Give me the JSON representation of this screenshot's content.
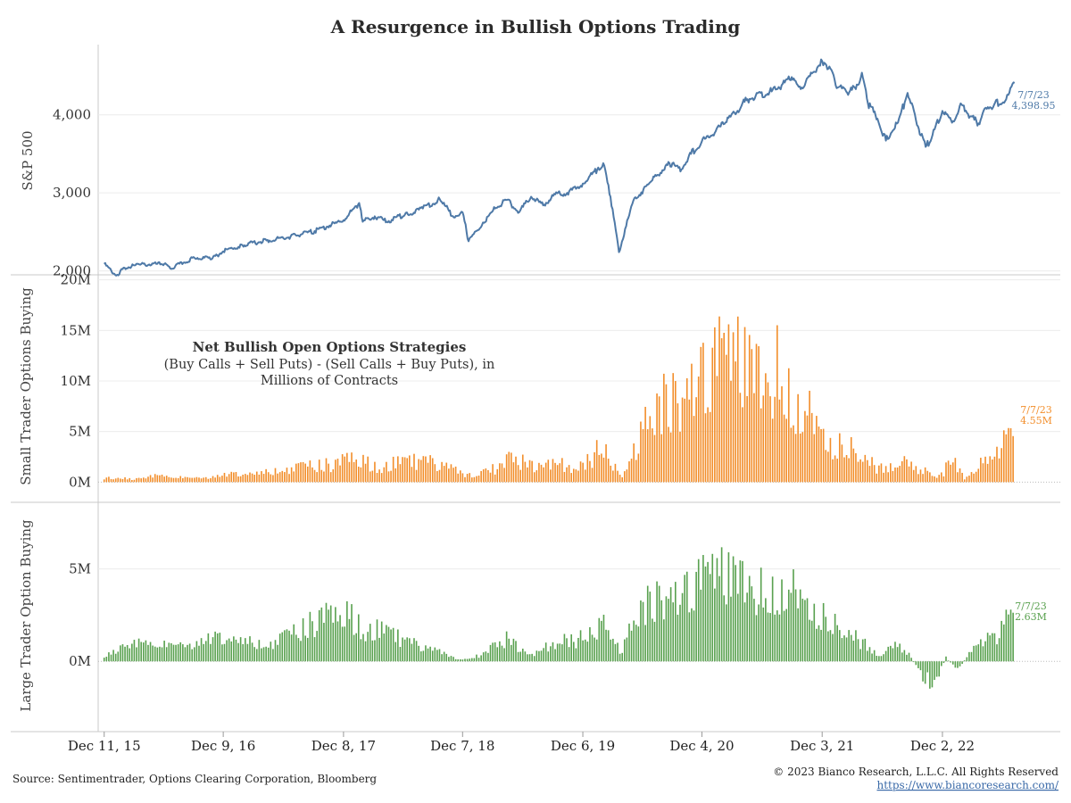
{
  "colors": {
    "sp500": "#4e79a7",
    "small": "#f28e2b",
    "large": "#59a14f",
    "axis": "#c8c8c8",
    "grid": "#ececec"
  },
  "header": {
    "title": "A Resurgence in Bullish Options Trading"
  },
  "annotation": {
    "title": "Net Bullish Open Options Strategies",
    "line1": "(Buy Calls + Sell Puts) - (Sell Calls + Buy Puts), in",
    "line2": "Millions of Contracts"
  },
  "footer": {
    "source": "Source: Sentimentrader, Options Clearing Corporation, Bloomberg",
    "copyright": "© 2023 Bianco Research, L.L.C. All Rights Reserved",
    "url": "https://www.biancoresearch.com/"
  },
  "chart_data": [
    {
      "type": "line",
      "name": "sp500",
      "ylabel": "S&P 500",
      "ylim": [
        1950,
        4900
      ],
      "yticks": [
        2000,
        3000,
        4000
      ],
      "ytick_labels": [
        "2,000",
        "3,000",
        "4,000"
      ],
      "xlim": [
        2015.9,
        2023.9
      ],
      "xticks": [
        2015.95,
        2016.94,
        2017.94,
        2018.93,
        2019.93,
        2020.92,
        2021.92,
        2022.92
      ],
      "xtick_labels": [
        "Dec 11, 15",
        "Dec 9, 16",
        "Dec 8, 17",
        "Dec 7, 18",
        "Dec 6, 19",
        "Dec 4, 20",
        "Dec 3, 21",
        "Dec 2, 22"
      ],
      "points": [
        [
          2015.95,
          2090
        ],
        [
          2016.05,
          1940
        ],
        [
          2016.12,
          2040
        ],
        [
          2016.25,
          2080
        ],
        [
          2016.45,
          2090
        ],
        [
          2016.5,
          2030
        ],
        [
          2016.7,
          2170
        ],
        [
          2016.85,
          2160
        ],
        [
          2016.94,
          2250
        ],
        [
          2017.1,
          2330
        ],
        [
          2017.3,
          2390
        ],
        [
          2017.5,
          2440
        ],
        [
          2017.7,
          2510
        ],
        [
          2017.94,
          2650
        ],
        [
          2018.07,
          2870
        ],
        [
          2018.1,
          2630
        ],
        [
          2018.2,
          2700
        ],
        [
          2018.3,
          2630
        ],
        [
          2018.45,
          2720
        ],
        [
          2018.6,
          2800
        ],
        [
          2018.74,
          2920
        ],
        [
          2018.85,
          2700
        ],
        [
          2018.93,
          2750
        ],
        [
          2018.98,
          2380
        ],
        [
          2019.1,
          2620
        ],
        [
          2019.2,
          2800
        ],
        [
          2019.3,
          2910
        ],
        [
          2019.4,
          2750
        ],
        [
          2019.5,
          2950
        ],
        [
          2019.6,
          2840
        ],
        [
          2019.7,
          2980
        ],
        [
          2019.8,
          3000
        ],
        [
          2019.93,
          3120
        ],
        [
          2020.05,
          3300
        ],
        [
          2020.1,
          3380
        ],
        [
          2020.16,
          2950
        ],
        [
          2020.23,
          2240
        ],
        [
          2020.35,
          2900
        ],
        [
          2020.5,
          3150
        ],
        [
          2020.65,
          3380
        ],
        [
          2020.75,
          3300
        ],
        [
          2020.83,
          3500
        ],
        [
          2020.92,
          3660
        ],
        [
          2021.1,
          3880
        ],
        [
          2021.3,
          4200
        ],
        [
          2021.5,
          4300
        ],
        [
          2021.65,
          4450
        ],
        [
          2021.75,
          4350
        ],
        [
          2021.92,
          4690
        ],
        [
          2021.98,
          4620
        ],
        [
          2022.05,
          4350
        ],
        [
          2022.12,
          4300
        ],
        [
          2022.2,
          4330
        ],
        [
          2022.25,
          4540
        ],
        [
          2022.3,
          4150
        ],
        [
          2022.38,
          3950
        ],
        [
          2022.45,
          3670
        ],
        [
          2022.55,
          3900
        ],
        [
          2022.63,
          4280
        ],
        [
          2022.7,
          3930
        ],
        [
          2022.78,
          3590
        ],
        [
          2022.83,
          3700
        ],
        [
          2022.92,
          4050
        ],
        [
          2023.0,
          3900
        ],
        [
          2023.08,
          4130
        ],
        [
          2023.15,
          3980
        ],
        [
          2023.22,
          3890
        ],
        [
          2023.28,
          4090
        ],
        [
          2023.35,
          4130
        ],
        [
          2023.45,
          4200
        ],
        [
          2023.52,
          4410
        ],
        [
          2023.515,
          4398.95
        ]
      ],
      "end_date": "7/7/23",
      "end_value": "4,398.95"
    },
    {
      "type": "bar",
      "name": "small",
      "ylabel": "Small Trader Options Buying",
      "ylim": [
        -2,
        20.5
      ],
      "yticks": [
        0,
        5,
        10,
        15,
        20
      ],
      "ytick_labels": [
        "0M",
        "5M",
        "10M",
        "15M",
        "20M"
      ],
      "xlim": [
        2015.9,
        2023.9
      ],
      "anchors": [
        [
          2015.95,
          0.4
        ],
        [
          2016.2,
          0.3
        ],
        [
          2016.4,
          0.6
        ],
        [
          2016.7,
          0.5
        ],
        [
          2017.0,
          0.7
        ],
        [
          2017.3,
          0.9
        ],
        [
          2017.6,
          1.4
        ],
        [
          2017.9,
          1.8
        ],
        [
          2018.0,
          2.4
        ],
        [
          2018.2,
          1.5
        ],
        [
          2018.4,
          1.8
        ],
        [
          2018.6,
          2.1
        ],
        [
          2018.8,
          1.6
        ],
        [
          2018.95,
          0.6
        ],
        [
          2019.2,
          1.3
        ],
        [
          2019.35,
          2.3
        ],
        [
          2019.5,
          1.6
        ],
        [
          2019.7,
          1.8
        ],
        [
          2019.9,
          1.3
        ],
        [
          2020.1,
          3.6
        ],
        [
          2020.25,
          0.3
        ],
        [
          2020.4,
          4.2
        ],
        [
          2020.55,
          7.5
        ],
        [
          2020.75,
          8.0
        ],
        [
          2020.9,
          10.5
        ],
        [
          2021.05,
          14.0
        ],
        [
          2021.15,
          12.0
        ],
        [
          2021.3,
          10.5
        ],
        [
          2021.45,
          9.0
        ],
        [
          2021.55,
          11.5
        ],
        [
          2021.7,
          8.0
        ],
        [
          2021.8,
          6.5
        ],
        [
          2022.0,
          4.0
        ],
        [
          2022.2,
          3.0
        ],
        [
          2022.4,
          1.3
        ],
        [
          2022.6,
          2.0
        ],
        [
          2022.75,
          1.2
        ],
        [
          2022.9,
          0.5
        ],
        [
          2023.0,
          2.2
        ],
        [
          2023.1,
          0.4
        ],
        [
          2023.3,
          2.3
        ],
        [
          2023.45,
          3.8
        ],
        [
          2023.515,
          4.55
        ]
      ],
      "end_date": "7/7/23",
      "end_value": "4.55M"
    },
    {
      "type": "bar",
      "name": "large",
      "ylabel": "Large Trader Option Buying",
      "ylim": [
        -3.8,
        8.6
      ],
      "yticks": [
        0,
        5
      ],
      "ytick_labels": [
        "0M",
        "5M"
      ],
      "xlim": [
        2015.9,
        2023.9
      ],
      "anchors": [
        [
          2015.95,
          0.2
        ],
        [
          2016.1,
          0.8
        ],
        [
          2016.4,
          1.0
        ],
        [
          2016.7,
          1.1
        ],
        [
          2017.0,
          1.2
        ],
        [
          2017.3,
          0.8
        ],
        [
          2017.55,
          1.5
        ],
        [
          2017.75,
          2.3
        ],
        [
          2017.95,
          2.5
        ],
        [
          2018.1,
          1.8
        ],
        [
          2018.3,
          1.5
        ],
        [
          2018.5,
          1.0
        ],
        [
          2018.7,
          0.6
        ],
        [
          2018.85,
          0.2
        ],
        [
          2018.98,
          0.1
        ],
        [
          2019.1,
          0.4
        ],
        [
          2019.3,
          1.2
        ],
        [
          2019.5,
          0.3
        ],
        [
          2019.7,
          1.0
        ],
        [
          2019.9,
          1.2
        ],
        [
          2020.1,
          2.0
        ],
        [
          2020.25,
          0.5
        ],
        [
          2020.4,
          2.8
        ],
        [
          2020.6,
          3.4
        ],
        [
          2020.75,
          3.6
        ],
        [
          2020.9,
          5.0
        ],
        [
          2021.05,
          4.5
        ],
        [
          2021.25,
          4.0
        ],
        [
          2021.45,
          3.8
        ],
        [
          2021.6,
          4.0
        ],
        [
          2021.7,
          3.5
        ],
        [
          2021.85,
          3.0
        ],
        [
          2022.0,
          2.0
        ],
        [
          2022.2,
          1.3
        ],
        [
          2022.4,
          0.3
        ],
        [
          2022.55,
          1.0
        ],
        [
          2022.65,
          0.3
        ],
        [
          2022.75,
          -0.8
        ],
        [
          2022.85,
          -1.2
        ],
        [
          2022.95,
          0.2
        ],
        [
          2023.05,
          -0.5
        ],
        [
          2023.2,
          1.0
        ],
        [
          2023.35,
          1.2
        ],
        [
          2023.45,
          2.2
        ],
        [
          2023.515,
          2.63
        ]
      ],
      "end_date": "7/7/23",
      "end_value": "2.63M"
    }
  ]
}
